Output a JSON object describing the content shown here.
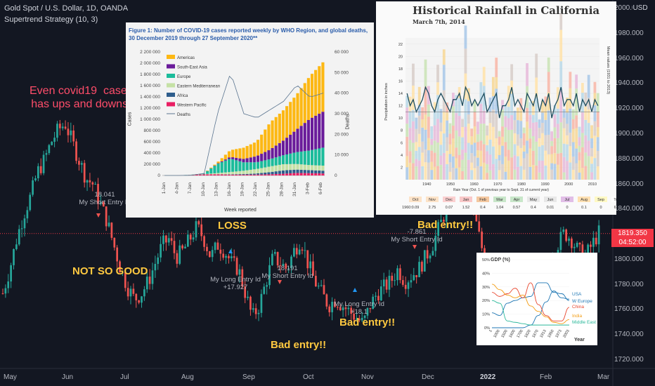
{
  "header": {
    "title": "Gold Spot / U.S. Dollar, 1D, OANDA",
    "indicator": "Supertrend Strategy (10, 3)"
  },
  "price_axis": {
    "currency": "USD",
    "ticks": [
      "2000.000",
      "1980.000",
      "1960.000",
      "1940.000",
      "1920.000",
      "1900.000",
      "1880.000",
      "1860.000",
      "1840.000",
      "1820.000",
      "1800.000",
      "1780.000",
      "1760.000",
      "1740.000",
      "1720.000"
    ],
    "last_price": "1819.350",
    "countdown": "04:52:00"
  },
  "time_axis": [
    "May",
    "Jun",
    "Jul",
    "Aug",
    "Sep",
    "Oct",
    "Nov",
    "Dec",
    "2022",
    "Feb",
    "Mar"
  ],
  "annotations": {
    "covid": "Even covid19  cases\nhas ups and downs!",
    "not_good": "NOT SO GOOD",
    "loss": "LOSS",
    "bad1": "Bad entry!!",
    "bad2": "Bad entry!!",
    "bad3": "Bad entry!!"
  },
  "trade_labels": [
    {
      "id": "t1",
      "value": "18.041",
      "label": "My Short Entry Id"
    },
    {
      "id": "t2",
      "value": "My Long Entry Id",
      "label": "+17.927"
    },
    {
      "id": "t3",
      "value": "18.191",
      "label": "My Short Entry Id"
    },
    {
      "id": "t4",
      "value": "My Long Entry Id",
      "label": "+18.1"
    },
    {
      "id": "t5",
      "value": "-7.861",
      "label": "My Short Entry Id"
    }
  ],
  "covid_panel": {
    "title": "Figure 1: Number of COVID-19 cases reported weekly by WHO Region, and global deaths, 30 December 2019 through 27 September 2020**",
    "ylabel_left": "Cases",
    "ylabel_right": "Deaths",
    "xlabel": "Week reported",
    "left_ticks": [
      "2 200 000",
      "2 000 000",
      "1 800 000",
      "1 600 000",
      "1 400 000",
      "1 200 000",
      "1 000 000",
      "800 000",
      "600 000",
      "400 000",
      "200 000",
      "0"
    ],
    "right_ticks": [
      "60 000",
      "50 000",
      "40 000",
      "30 000",
      "20 000",
      "10 000",
      "0"
    ],
    "x_ticks": [
      "1-Jan",
      "4-Jan",
      "7-Jan",
      "10-Jan",
      "13-Jan",
      "16-Jan",
      "19-Jan",
      "22-Jan",
      "25-Jan",
      "28-Jan",
      "31-Jan",
      "3-Feb",
      "6-Feb"
    ],
    "legend": [
      {
        "name": "Americas",
        "color": "#fdb813"
      },
      {
        "name": "South-East Asia",
        "color": "#6a1b9a"
      },
      {
        "name": "Europe",
        "color": "#1bbc9b"
      },
      {
        "name": "Eastern Mediterranean",
        "color": "#c5e1a5"
      },
      {
        "name": "Africa",
        "color": "#2e5d8c"
      },
      {
        "name": "Western Pacific",
        "color": "#e91e63"
      },
      {
        "name": "Deaths",
        "color": "#5b7590"
      }
    ]
  },
  "rain_panel": {
    "title": "Historical Rainfall in California",
    "subtitle": "March 7th, 2014",
    "ylabel": "Precipitation in inches",
    "ylabel_right": "Mean values (1931 to 2013)",
    "xlabel": "Rain Year (Oct. 1 of previous year to Sept. 31 of current year)",
    "y_ticks": [
      "22",
      "20",
      "18",
      "16",
      "14",
      "12",
      "10",
      "8",
      "6",
      "4",
      "2"
    ],
    "x_ticks": [
      "1940",
      "1950",
      "1960",
      "1970",
      "1980",
      "1990",
      "2000",
      "2010"
    ],
    "table_header": [
      "Oct",
      "Nov",
      "Dec",
      "Jan",
      "Feb",
      "Mar",
      "Apr",
      "May",
      "Jun",
      "Jul",
      "Aug",
      "Sep",
      "Total"
    ],
    "table_row": [
      "1960:",
      "0.09",
      "2.75",
      "0.07",
      "1.52",
      "0.4",
      "1.04",
      "0.57",
      "0.4",
      "0.01",
      "0",
      "0.1",
      "0",
      "6.95"
    ]
  },
  "gdp_panel": {
    "title": "GDP (%)",
    "y_ticks": [
      "50%",
      "40%",
      "30%",
      "20%",
      "10%",
      "0%"
    ],
    "x_ticks": [
      "1",
      "1000",
      "1500",
      "1600",
      "1700",
      "1820",
      "1870",
      "1913",
      "1950",
      "1973",
      "2003"
    ],
    "xlabel": "Year",
    "series_labels": [
      {
        "name": "USA",
        "color": "#1f77b4"
      },
      {
        "name": "W Europe",
        "color": "#1f77b4"
      },
      {
        "name": "China",
        "color": "#e8452c"
      },
      {
        "name": "India",
        "color": "#f39c12"
      },
      {
        "name": "Middle East",
        "color": "#2bb89a"
      }
    ]
  },
  "chart_data": [
    {
      "type": "candlestick",
      "title": "Gold Spot / U.S. Dollar, 1D, OANDA",
      "ylim": [
        1715,
        2005
      ],
      "x_months": [
        "May",
        "Jun",
        "Jul",
        "Aug",
        "Sep",
        "Oct",
        "Nov",
        "Dec",
        "2022",
        "Feb",
        "Mar"
      ],
      "close_path": [
        1770,
        1790,
        1815,
        1835,
        1850,
        1870,
        1880,
        1895,
        1905,
        1910,
        1895,
        1880,
        1865,
        1860,
        1845,
        1830,
        1810,
        1790,
        1775,
        1765,
        1770,
        1780,
        1795,
        1810,
        1815,
        1800,
        1805,
        1815,
        1825,
        1815,
        1800,
        1810,
        1805,
        1795,
        1790,
        1770,
        1750,
        1760,
        1780,
        1800,
        1795,
        1790,
        1805,
        1815,
        1795,
        1780,
        1770,
        1760,
        1765,
        1760,
        1755,
        1750,
        1745,
        1760,
        1770,
        1775,
        1780,
        1790,
        1780,
        1785,
        1790,
        1800,
        1810,
        1825,
        1840,
        1855,
        1860,
        1850,
        1835,
        1810,
        1790,
        1780,
        1785,
        1790,
        1780,
        1775,
        1780,
        1785,
        1790,
        1800,
        1810,
        1820,
        1815,
        1805,
        1800,
        1810,
        1820
      ],
      "last_price": 1819.35
    },
    {
      "type": "bar",
      "title": "Figure 1: Number of COVID-19 cases reported weekly by WHO Region, and global deaths",
      "categories": [
        "1-Jan",
        "4-Jan",
        "7-Jan",
        "10-Jan",
        "13-Jan",
        "16-Jan",
        "19-Jan",
        "22-Jan",
        "25-Jan",
        "28-Jan",
        "31-Jan",
        "3-Feb",
        "6-Feb"
      ],
      "series": [
        {
          "name": "Americas",
          "values": [
            0,
            0,
            0,
            2000,
            20000,
            120000,
            200000,
            260000,
            480000,
            540000,
            620000,
            760000,
            880000
          ]
        },
        {
          "name": "South-East Asia",
          "values": [
            0,
            0,
            0,
            500,
            5000,
            30000,
            60000,
            110000,
            170000,
            260000,
            400000,
            560000,
            640000
          ]
        },
        {
          "name": "Europe",
          "values": [
            0,
            0,
            2000,
            10000,
            160000,
            240000,
            150000,
            120000,
            130000,
            160000,
            210000,
            260000,
            320000
          ]
        },
        {
          "name": "Eastern Mediterranean",
          "values": [
            0,
            0,
            500,
            2000,
            20000,
            40000,
            60000,
            80000,
            100000,
            110000,
            100000,
            90000,
            90000
          ]
        },
        {
          "name": "Africa",
          "values": [
            0,
            0,
            0,
            100,
            2000,
            6000,
            12000,
            20000,
            40000,
            60000,
            60000,
            55000,
            50000
          ]
        },
        {
          "name": "Western Pacific",
          "values": [
            0,
            0,
            10000,
            20000,
            20000,
            15000,
            12000,
            15000,
            20000,
            30000,
            45000,
            40000,
            35000
          ]
        }
      ],
      "deaths": [
        0,
        0,
        100,
        1000,
        30000,
        50000,
        30000,
        28000,
        32000,
        36000,
        44000,
        38000,
        40000
      ],
      "ylim": [
        0,
        2200000
      ],
      "ylim_right": [
        0,
        60000
      ]
    },
    {
      "type": "bar",
      "title": "Historical Rainfall in California",
      "x_range": [
        1931,
        2013
      ],
      "ylim": [
        0,
        23
      ],
      "annual_totals": [
        14,
        12,
        18,
        10,
        15,
        13,
        20,
        16,
        9,
        11,
        17,
        14,
        19,
        12,
        8,
        16,
        13,
        15,
        10,
        22,
        14,
        11,
        17,
        12,
        16,
        19,
        9,
        13,
        15,
        18,
        7,
        14,
        12,
        17,
        20,
        11,
        16,
        13,
        9,
        21,
        14,
        12,
        18,
        10,
        15,
        13,
        20,
        8,
        12,
        16,
        23,
        11,
        14,
        17,
        13,
        19,
        9,
        15,
        12,
        18,
        10,
        16,
        14
      ],
      "mean_line": [
        14,
        12,
        13,
        11,
        12,
        13,
        15,
        14,
        12,
        11,
        13,
        14,
        13,
        12,
        11,
        13,
        13,
        14,
        12,
        15,
        14,
        12,
        13,
        12,
        13,
        14,
        11,
        12,
        13,
        14,
        10,
        12,
        12,
        13,
        15,
        12,
        13,
        12,
        11,
        14,
        13,
        12,
        14,
        11,
        13,
        12,
        14,
        10,
        12,
        13,
        15,
        12,
        13,
        13,
        12,
        14,
        11,
        13,
        12,
        13,
        11,
        13,
        12
      ]
    },
    {
      "type": "line",
      "title": "GDP (%)",
      "x": [
        "1",
        "1000",
        "1500",
        "1600",
        "1700",
        "1820",
        "1870",
        "1913",
        "1950",
        "1973",
        "2003"
      ],
      "series": [
        {
          "name": "USA",
          "values": [
            0,
            0,
            0,
            0,
            0,
            2,
            9,
            19,
            27,
            22,
            21
          ]
        },
        {
          "name": "W Europe",
          "values": [
            11,
            9,
            18,
            20,
            22,
            23,
            33,
            33,
            26,
            25,
            20
          ]
        },
        {
          "name": "China",
          "values": [
            26,
            23,
            25,
            29,
            22,
            33,
            17,
            9,
            5,
            5,
            15
          ]
        },
        {
          "name": "India",
          "values": [
            32,
            28,
            24,
            22,
            24,
            16,
            12,
            8,
            4,
            3,
            6
          ]
        },
        {
          "name": "Middle East",
          "values": [
            20,
            18,
            5,
            4,
            3,
            2,
            2,
            2,
            2,
            2,
            2
          ]
        }
      ],
      "ylim": [
        0,
        50
      ]
    }
  ]
}
